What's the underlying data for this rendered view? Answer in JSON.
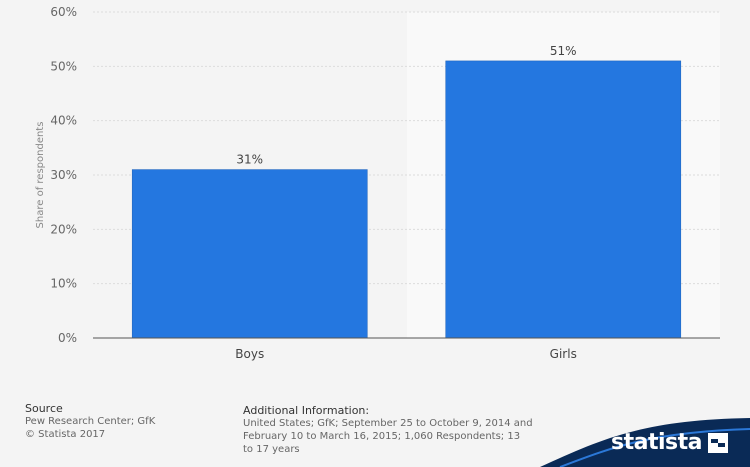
{
  "chart_data": {
    "type": "bar",
    "categories": [
      "Boys",
      "Girls"
    ],
    "values": [
      31,
      51
    ],
    "value_labels": [
      "31%",
      "51%"
    ],
    "title": "",
    "xlabel": "",
    "ylabel": "Share of respondents",
    "ylim": [
      0,
      60
    ],
    "yticks": [
      "0%",
      "10%",
      "20%",
      "30%",
      "40%",
      "50%",
      "60%"
    ],
    "grid": true,
    "bar_color": "#2477e0"
  },
  "source": {
    "title": "Source",
    "lines": [
      "Pew Research Center; GfK",
      "© Statista 2017"
    ]
  },
  "additional_info": {
    "title": "Additional Information:",
    "text": "United States; GfK; September 25 to October 9, 2014 and February 10 to March 16, 2015; 1,060 Respondents; 13 to 17 years"
  },
  "brand": {
    "name": "statista",
    "color": "#0a2a56"
  }
}
